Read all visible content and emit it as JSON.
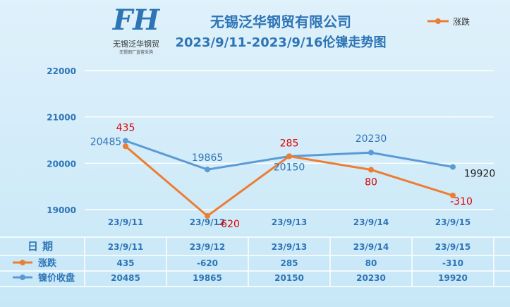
{
  "logo": {
    "initials": "FH",
    "name_cn": "无锡泛华钢贸",
    "tagline": "无锡钢厂直营采购"
  },
  "header": {
    "company": "无锡泛华钢贸有限公司",
    "subtitle": "2023/9/11-2023/9/16伦镍走势图"
  },
  "legend": {
    "label": "涨跌"
  },
  "table": {
    "header_label": "日期",
    "row1_label": "涨跌",
    "row2_label": "镍价收盘"
  },
  "colors": {
    "change": "#ed7d31",
    "close": "#5b9bd5",
    "change_label": "#e00000",
    "close_label": "#2e75b6",
    "grid": "#ffffff"
  },
  "chart_data": {
    "type": "line",
    "title": "2023/9/11-2023/9/16伦镍走势图",
    "categories": [
      "23/9/11",
      "23/9/12",
      "23/9/13",
      "23/9/14",
      "23/9/15"
    ],
    "y_ticks": [
      19000,
      20000,
      21000,
      22000
    ],
    "ylim": [
      19000,
      22000
    ],
    "grid": true,
    "legend_position": "top-right",
    "series": [
      {
        "name": "涨跌",
        "values": [
          435,
          -620,
          285,
          80,
          -310
        ]
      },
      {
        "name": "镍价收盘",
        "values": [
          20485,
          19865,
          20150,
          20230,
          19920
        ]
      }
    ]
  }
}
